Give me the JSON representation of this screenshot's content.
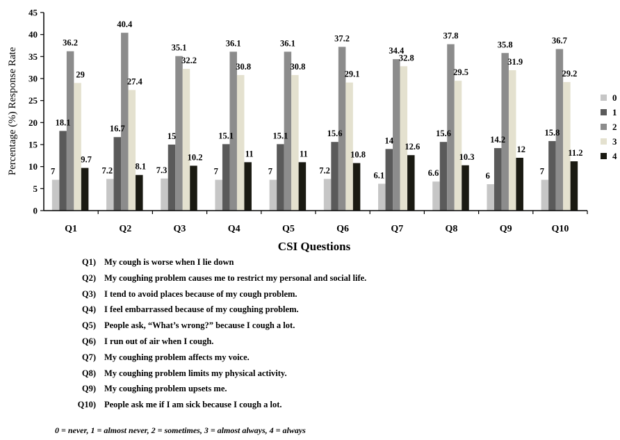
{
  "chart_data": {
    "type": "bar",
    "title": "",
    "xlabel": "CSI Questions",
    "ylabel": "Percentage (%) Response Rate",
    "ylim": [
      0,
      45
    ],
    "yticks": [
      "0",
      "5",
      "10",
      "15",
      "20",
      "25",
      "30",
      "35",
      "40",
      "45"
    ],
    "categories": [
      "Q1",
      "Q2",
      "Q3",
      "Q4",
      "Q5",
      "Q6",
      "Q7",
      "Q8",
      "Q9",
      "Q10"
    ],
    "series": [
      {
        "name": "0",
        "color": "#c6c6c6",
        "values": [
          7,
          7.2,
          7.3,
          7,
          7,
          7.2,
          6.1,
          6.6,
          6,
          7
        ],
        "labels": [
          "7",
          "7.2",
          "7.3",
          "7",
          "7",
          "7.2",
          "6.1",
          "6.6",
          "6",
          "7"
        ]
      },
      {
        "name": "1",
        "color": "#5a5a5a",
        "values": [
          18.1,
          16.7,
          15,
          15.1,
          15.1,
          15.6,
          14,
          15.6,
          14.2,
          15.8
        ],
        "labels": [
          "18.1",
          "16.7",
          "15",
          "15.1",
          "15.1",
          "15.6",
          "14",
          "15.6",
          "14.2",
          "15.8"
        ]
      },
      {
        "name": "2",
        "color": "#8c8c8c",
        "values": [
          36.2,
          40.4,
          35.1,
          36.1,
          36.1,
          37.2,
          34.4,
          37.8,
          35.8,
          36.7
        ],
        "labels": [
          "36.2",
          "40.4",
          "35.1",
          "36.1",
          "36.1",
          "37.2",
          "34.4",
          "37.8",
          "35.8",
          "36.7"
        ]
      },
      {
        "name": "3",
        "color": "#e4e1cf",
        "values": [
          29,
          27.4,
          32.2,
          30.8,
          30.8,
          29.1,
          32.8,
          29.5,
          31.9,
          29.2
        ],
        "labels": [
          "29",
          "27.4",
          "32.2",
          "30.8",
          "30.8",
          "29.1",
          "32.8",
          "29.5",
          "31.9",
          "29.2"
        ]
      },
      {
        "name": "4",
        "color": "#1a1a12",
        "values": [
          9.7,
          8.1,
          10.2,
          11,
          11,
          10.8,
          12.6,
          10.3,
          12,
          11.2
        ],
        "labels": [
          "9.7",
          "8.1",
          "10.2",
          "11",
          "11",
          "10.8",
          "12.6",
          "10.3",
          "12",
          "11.2"
        ]
      }
    ],
    "legend_position": "right",
    "grid": false
  },
  "questions": [
    {
      "code": "Q1)",
      "text": "My cough is worse when I lie down"
    },
    {
      "code": "Q2)",
      "text": "My coughing problem causes me to restrict my personal and social life."
    },
    {
      "code": "Q3)",
      "text": "I tend to avoid places because of my cough problem."
    },
    {
      "code": "Q4)",
      "text": "I feel embarrassed because of my coughing problem."
    },
    {
      "code": "Q5)",
      "text": "People ask, “What’s wrong?” because I cough a lot."
    },
    {
      "code": "Q6)",
      "text": "I run out of air when I cough."
    },
    {
      "code": "Q7)",
      "text": "My coughing problem affects my voice."
    },
    {
      "code": "Q8)",
      "text": "My coughing problem limits my physical activity."
    },
    {
      "code": "Q9)",
      "text": "My coughing problem upsets me."
    },
    {
      "code": "Q10)",
      "text": "People ask me if I am sick because I cough a lot."
    }
  ],
  "scale_note": "0 = never, 1 = almost never, 2 = sometimes, 3 = almost always, 4 = always"
}
